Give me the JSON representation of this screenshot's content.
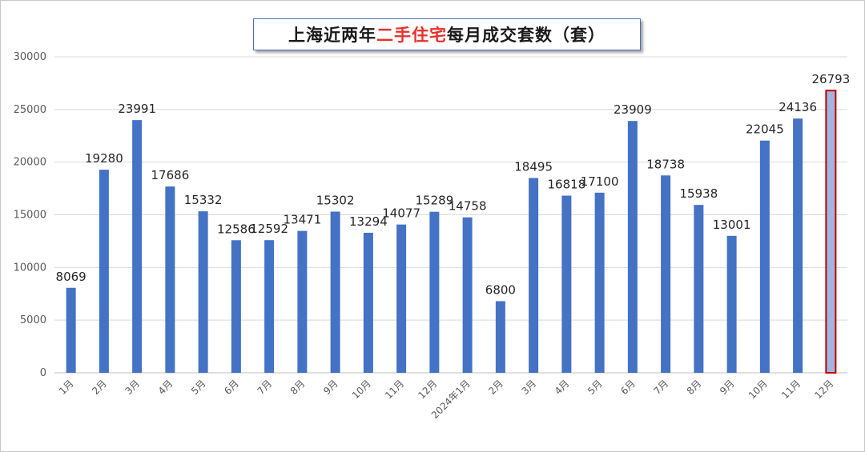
{
  "chart_data": {
    "type": "bar",
    "title_parts": [
      "上海近两年",
      "二手住宅",
      "每月成交套数（套）"
    ],
    "categories": [
      "1月",
      "2月",
      "3月",
      "4月",
      "5月",
      "6月",
      "7月",
      "8月",
      "9月",
      "10月",
      "11月",
      "12月",
      "2024年1月",
      "2月",
      "3月",
      "4月",
      "5月",
      "6月",
      "7月",
      "8月",
      "9月",
      "10月",
      "11月",
      "12月"
    ],
    "values": [
      8069,
      19280,
      23991,
      17686,
      15332,
      12586,
      12592,
      13471,
      15302,
      13294,
      14077,
      15289,
      14758,
      6800,
      18495,
      16818,
      17100,
      23909,
      18738,
      15938,
      13001,
      22045,
      24136,
      26793
    ],
    "ylim": [
      0,
      30000
    ],
    "yticks": [
      0,
      5000,
      10000,
      15000,
      20000,
      25000,
      30000
    ],
    "grid": true,
    "colors": {
      "bar": "#4472c4",
      "highlight_fill": "#9fb6e0",
      "highlight_border": "#c00000",
      "title_highlight": "#e8312a"
    },
    "highlight_index": 23
  }
}
